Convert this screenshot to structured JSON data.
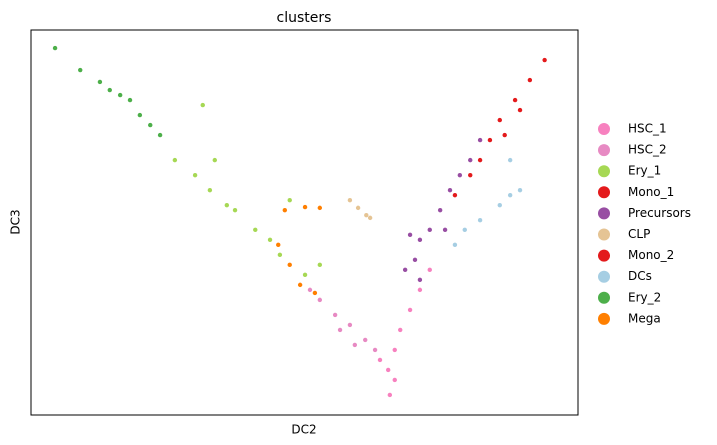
{
  "chart_data": {
    "type": "scatter",
    "title": "clusters",
    "x_label": "DC2",
    "y_label": "DC3",
    "xlim": [
      0,
      100
    ],
    "ylim": [
      0,
      100
    ],
    "series": [
      {
        "name": "HSC_1",
        "color": "#f781bf",
        "x": [
          65.6,
          65.3,
          66.5,
          67.5,
          69.3,
          71.1,
          72.9,
          63.8,
          66.5
        ],
        "y": [
          5.2,
          11.7,
          16.9,
          22.1,
          27.3,
          32.5,
          37.7,
          14.3,
          9.1
        ]
      },
      {
        "name": "HSC_2",
        "color": "#e78ac3",
        "x": [
          52.8,
          55.6,
          58.3,
          61.1,
          62.9,
          56.5,
          59.2,
          51.0
        ],
        "y": [
          29.9,
          26.0,
          23.4,
          19.5,
          16.9,
          22.1,
          18.2,
          32.5
        ]
      },
      {
        "name": "Ery_1",
        "color": "#a6d854",
        "x": [
          26.3,
          30.0,
          32.7,
          35.8,
          37.3,
          41.0,
          43.7,
          45.5,
          47.3,
          33.6,
          50.1,
          31.4,
          52.8
        ],
        "y": [
          66.2,
          62.3,
          58.4,
          54.5,
          53.2,
          48.1,
          45.5,
          41.6,
          55.8,
          66.2,
          36.4,
          80.5,
          39.0
        ]
      },
      {
        "name": "Mono_1",
        "color": "#e41a1c",
        "x": [
          93.9,
          91.2,
          88.5,
          85.7,
          89.4
        ],
        "y": [
          92.2,
          87.0,
          81.8,
          76.6,
          79.2
        ]
      },
      {
        "name": "Precursors",
        "color": "#984ea3",
        "x": [
          69.3,
          71.1,
          72.9,
          70.2,
          71.1,
          74.8,
          76.6,
          78.4,
          80.3,
          82.1,
          68.4,
          75.7
        ],
        "y": [
          46.8,
          45.5,
          48.1,
          40.3,
          35.1,
          53.2,
          58.4,
          62.3,
          66.2,
          71.4,
          37.7,
          48.1
        ]
      },
      {
        "name": "CLP",
        "color": "#e5c494",
        "x": [
          58.3,
          59.8,
          61.3,
          62.0
        ],
        "y": [
          55.8,
          53.8,
          51.9,
          51.2
        ]
      },
      {
        "name": "Mono_2",
        "color": "#e31a1c",
        "x": [
          83.9,
          82.1,
          80.3,
          77.5,
          86.6
        ],
        "y": [
          71.4,
          66.2,
          62.3,
          57.1,
          72.7
        ]
      },
      {
        "name": "DCs",
        "color": "#a6cee3",
        "x": [
          87.6,
          85.7,
          82.1,
          79.3,
          77.5,
          87.6,
          89.4
        ],
        "y": [
          57.1,
          54.5,
          50.6,
          48.1,
          44.2,
          66.2,
          58.4
        ]
      },
      {
        "name": "Ery_2",
        "color": "#4daf4a",
        "x": [
          4.4,
          9.0,
          12.6,
          16.3,
          18.1,
          19.9,
          21.8,
          14.4,
          23.6
        ],
        "y": [
          95.3,
          89.6,
          86.5,
          83.1,
          81.8,
          77.9,
          75.3,
          84.4,
          72.7
        ]
      },
      {
        "name": "Mega",
        "color": "#ff7f00",
        "x": [
          46.4,
          50.1,
          52.8,
          45.2,
          47.3,
          49.2,
          51.9
        ],
        "y": [
          53.2,
          54.0,
          53.8,
          44.2,
          39.0,
          33.8,
          31.7
        ]
      }
    ]
  }
}
